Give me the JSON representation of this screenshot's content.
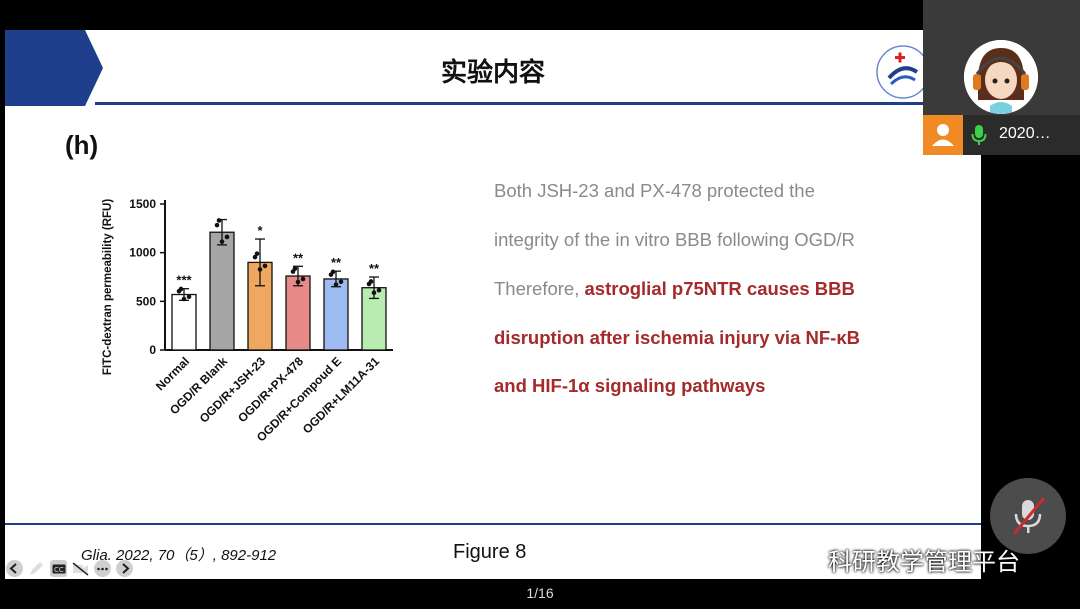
{
  "slide": {
    "title": "实验内容",
    "panel_label": "(h)",
    "paragraph": {
      "line1": "Both JSH-23 and PX-478 protected the",
      "line2": "integrity of the in vitro BBB  following OGD/R",
      "line3_prefix": "Therefore, ",
      "line3_bold": "astroglial p75NTR causes BBB",
      "line4": "disruption after ischemia injury via NF-κB",
      "line5": "and HIF-1α signaling pathways"
    },
    "citation": "Glia. 2022, 70（5）, 892-912",
    "figure_label": "Figure 8"
  },
  "chart_data": {
    "type": "bar",
    "categories": [
      "Normal",
      "OGD/R Blank",
      "OGD/R+JSH-23",
      "OGD/R+PX-478",
      "OGD/R+Compoud E",
      "OGD/R+LM11A-31"
    ],
    "values": [
      570,
      1210,
      900,
      760,
      730,
      640
    ],
    "errors": [
      60,
      130,
      240,
      100,
      80,
      110
    ],
    "significance": [
      "***",
      "",
      "*",
      "**",
      "**",
      "**"
    ],
    "colors": [
      "#ffffff",
      "#a6a6a6",
      "#f0a860",
      "#e88a88",
      "#9ebcf0",
      "#b8ecb0"
    ],
    "ylabel": "FITC-dextran permeability (RFU)",
    "yticks": [
      0,
      500,
      1000,
      1500
    ],
    "ylim": [
      0,
      1500
    ]
  },
  "video": {
    "participant_name": "2020…"
  },
  "watermark": "科研教学管理平台",
  "page_indicator": "1/16"
}
